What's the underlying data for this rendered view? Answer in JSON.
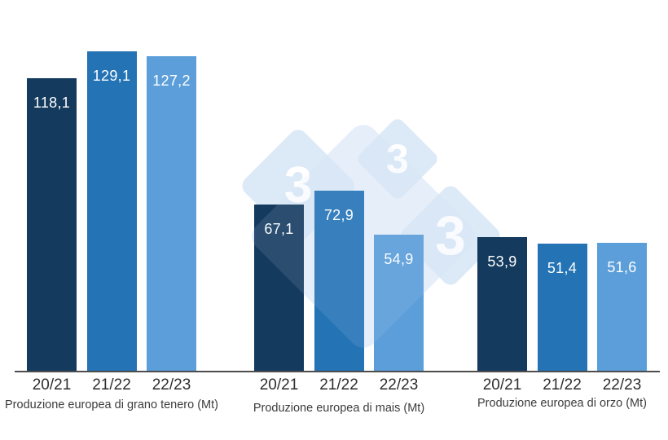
{
  "chart_data": {
    "type": "bar",
    "categories": [
      "20/21",
      "21/22",
      "22/23"
    ],
    "unit": "Mt",
    "groups": [
      {
        "title": "Produzione europea di grano tenero (Mt)",
        "values": [
          118.1,
          129.1,
          127.2
        ],
        "labels": [
          "118,1",
          "129,1",
          "127,2"
        ]
      },
      {
        "title": "Produzione europea di mais (Mt)",
        "values": [
          67.1,
          72.9,
          54.9
        ],
        "labels": [
          "67,1",
          "72,9",
          "54,9"
        ]
      },
      {
        "title": "Produzione europea di orzo (Mt)",
        "values": [
          53.9,
          51.4,
          51.6
        ],
        "labels": [
          "53,9",
          "51,4",
          "51,6"
        ]
      }
    ],
    "bar_colors": [
      "#143a5e",
      "#2473b5",
      "#5b9ed9"
    ],
    "value_label_color": "#ffffff",
    "axis_line": true,
    "axis_line_color": "#4d4d4d",
    "grid": false,
    "legend": "none",
    "ylim": [
      0,
      150
    ]
  },
  "watermark": {
    "text": "3",
    "diamond_color": "#dce9f6",
    "big_diamond_color": "#eaf1fa",
    "text_color": "#ffffff"
  }
}
